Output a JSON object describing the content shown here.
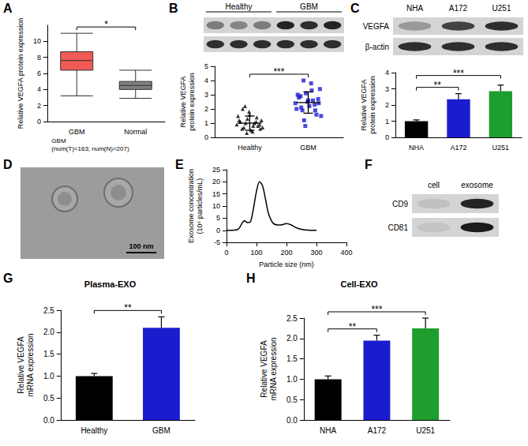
{
  "panel_labels": [
    "A",
    "B",
    "C",
    "D",
    "E",
    "F",
    "G",
    "H"
  ],
  "chart_data": [
    {
      "type": "box",
      "subtitle": "GBM\n(num(T)=163; num(N)=207)",
      "ylabel": "Relative VEGFA protein expression",
      "categories": [
        "GBM",
        "Normal"
      ],
      "boxes": [
        [
          3.2,
          6.4,
          7.6,
          8.7,
          11.0
        ],
        [
          2.9,
          4.0,
          4.5,
          5.0,
          6.4
        ]
      ],
      "colors": [
        "#f15a55",
        "#7f7f7f"
      ],
      "ylim": [
        0,
        12
      ],
      "yticks": [
        0,
        2,
        4,
        6,
        8,
        10
      ],
      "grid": false,
      "significance": [
        {
          "from": 0,
          "to": 1,
          "label": "*"
        }
      ]
    },
    {
      "type": "scatter",
      "ylabel": "Relative VEGFA\nprotein expression",
      "xlim": [
        0.4,
        2.6
      ],
      "xticks": [
        {
          "value": 1,
          "label": "Healthy"
        },
        {
          "value": 2,
          "label": "GBM"
        }
      ],
      "ylim": [
        0,
        5
      ],
      "yticks": [
        0,
        1,
        2,
        3,
        4,
        5
      ],
      "grid": false,
      "series": [
        {
          "color": "#000000",
          "marker": "triangle",
          "x": [
            0.78,
            0.84,
            0.9,
            0.96,
            1.02,
            1.08,
            1.14,
            1.2,
            0.8,
            0.87,
            0.93,
            0.99,
            1.05,
            1.11,
            1.17,
            1.22,
            0.82,
            0.88,
            0.95,
            1.0,
            1.06,
            1.12,
            1.18,
            0.92
          ],
          "values": [
            0.9,
            1.1,
            0.7,
            1.3,
            0.5,
            1.0,
            0.8,
            1.2,
            1.5,
            0.6,
            1.0,
            1.8,
            0.4,
            1.1,
            0.9,
            0.7,
            1.2,
            2.0,
            0.3,
            1.6,
            0.8,
            1.4,
            0.6,
            2.2
          ],
          "mean": 1.0,
          "sd": 0.5
        },
        {
          "color": "#1c1ccf",
          "marker": "square",
          "x": [
            1.78,
            1.84,
            1.9,
            1.96,
            2.02,
            2.08,
            2.14,
            2.2,
            1.8,
            1.87,
            1.93,
            1.99,
            2.05,
            2.11,
            2.17,
            2.22,
            1.82,
            1.88,
            1.95,
            2.0,
            2.06,
            2.12,
            2.18,
            1.92
          ],
          "values": [
            2.4,
            2.8,
            1.9,
            3.1,
            2.2,
            2.6,
            1.6,
            3.4,
            2.0,
            2.9,
            1.2,
            2.5,
            3.8,
            2.3,
            2.7,
            1.5,
            3.0,
            2.1,
            0.8,
            2.6,
            3.3,
            1.9,
            2.4,
            4.0
          ],
          "mean": 2.45,
          "sd": 0.75
        }
      ],
      "significance": [
        {
          "from": 1,
          "to": 2,
          "label": "***"
        }
      ]
    },
    {
      "type": "bar",
      "ylabel": "Relative VEGFA\nprotein expression",
      "categories": [
        "NHA",
        "A172",
        "U251"
      ],
      "values": [
        1.0,
        2.35,
        2.85
      ],
      "errors": [
        0.08,
        0.35,
        0.38
      ],
      "colors": [
        "#000000",
        "#1c1ccf",
        "#1e9e2e"
      ],
      "ylim": [
        0,
        4
      ],
      "yticks": [
        0,
        1,
        2,
        3,
        4
      ],
      "grid": false,
      "significance": [
        {
          "from": 0,
          "to": 1,
          "label": "**"
        },
        {
          "from": 0,
          "to": 2,
          "label": "***"
        }
      ]
    },
    {
      "type": "line",
      "xlabel": "Particle size (nm)",
      "ylabel": "Exosome concentration\n(10⁶ particles/mL)",
      "x": [
        0,
        20,
        40,
        50,
        60,
        70,
        80,
        90,
        100,
        110,
        120,
        130,
        140,
        155,
        170,
        185,
        200,
        215,
        230,
        250,
        270,
        290,
        300
      ],
      "values": [
        0,
        0,
        0.5,
        2.5,
        4,
        3.2,
        3.5,
        9,
        16,
        20,
        18.5,
        13,
        7,
        3,
        2.2,
        2.3,
        2.8,
        2.3,
        1.2,
        0.4,
        0.1,
        0,
        0
      ],
      "color": "#000000",
      "xlim": [
        0,
        400
      ],
      "xticks": [
        0,
        100,
        200,
        300,
        400
      ],
      "ylim": [
        -5,
        25
      ],
      "yticks": [
        -5,
        0,
        5,
        10,
        15,
        20,
        25
      ],
      "grid": false
    },
    {
      "type": "bar",
      "title": "Plasma-EXO",
      "ylabel": "Relative VEGFA\nmRNA expression",
      "categories": [
        "Healthy",
        "GBM"
      ],
      "values": [
        1.0,
        2.1
      ],
      "errors": [
        0.06,
        0.25
      ],
      "colors": [
        "#000000",
        "#1c1ccf"
      ],
      "ylim": [
        0,
        2.5
      ],
      "yticks": [
        {
          "value": 0,
          "label": "0.0"
        },
        0.5,
        {
          "value": 1,
          "label": "1.0"
        },
        1.5,
        {
          "value": 2,
          "label": "2.0"
        },
        2.5
      ],
      "grid": false,
      "significance": [
        {
          "from": 0,
          "to": 1,
          "label": "**"
        }
      ]
    },
    {
      "type": "bar",
      "title": "Cell-EXO",
      "ylabel": "Relative VEGFA\nmRNA expression",
      "categories": [
        "NHA",
        "A172",
        "U251"
      ],
      "values": [
        1.0,
        1.95,
        2.25
      ],
      "errors": [
        0.08,
        0.13,
        0.25
      ],
      "colors": [
        "#000000",
        "#1c1ccf",
        "#1e9e2e"
      ],
      "ylim": [
        0,
        2.5
      ],
      "yticks": [
        {
          "value": 0,
          "label": "0.0"
        },
        0.5,
        {
          "value": 1,
          "label": "1.0"
        },
        1.5,
        {
          "value": 2,
          "label": "2.0"
        },
        2.5
      ],
      "grid": false,
      "significance": [
        {
          "from": 0,
          "to": 1,
          "label": "**"
        },
        {
          "from": 0,
          "to": 2,
          "label": "***"
        }
      ]
    }
  ],
  "blots": [
    {
      "columns": [
        {
          "label": "Healthy",
          "lanes": 3
        },
        {
          "label": "GBM",
          "lanes": 3
        }
      ],
      "rows": [
        {
          "intensity": [
            0.45,
            0.4,
            0.45,
            0.9,
            0.85,
            0.9
          ]
        },
        {
          "intensity": [
            0.85,
            0.85,
            0.85,
            0.85,
            0.85,
            0.85
          ]
        }
      ]
    },
    {
      "columns": [
        {
          "label": "NHA",
          "lanes": 1
        },
        {
          "label": "A172",
          "lanes": 1
        },
        {
          "label": "U251",
          "lanes": 1
        }
      ],
      "rows": [
        {
          "label": "VEGFA",
          "intensity": [
            0.3,
            0.75,
            0.85
          ]
        },
        {
          "label": "β-actin",
          "intensity": [
            0.85,
            0.85,
            0.85
          ]
        }
      ]
    },
    {
      "columns": [
        {
          "label": "cell",
          "lanes": 1
        },
        {
          "label": "exosome",
          "lanes": 1
        }
      ],
      "rows": [
        {
          "label": "CD9",
          "intensity": [
            0.1,
            0.9
          ]
        },
        {
          "label": "CD81",
          "intensity": [
            0.08,
            0.95
          ]
        }
      ]
    }
  ],
  "tem": {
    "scale_bar": "100 nm"
  }
}
